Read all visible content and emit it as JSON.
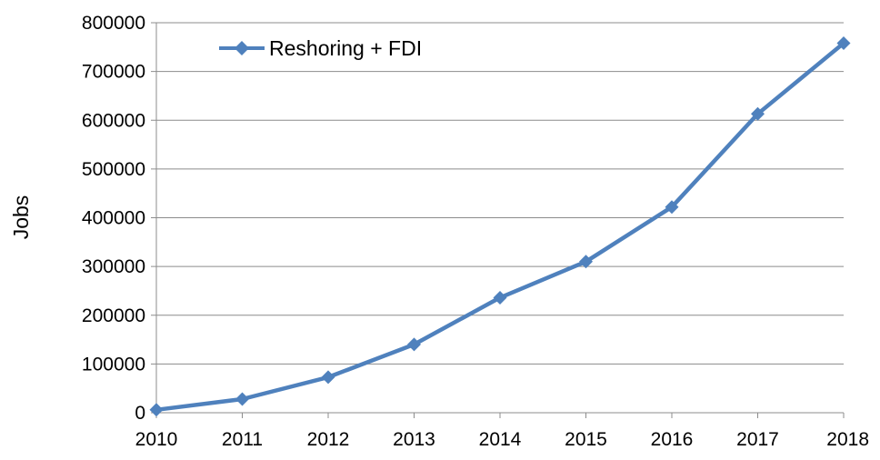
{
  "chart_data": {
    "type": "line",
    "title": "",
    "xlabel": "",
    "ylabel": "Jobs",
    "x": [
      2010,
      2011,
      2012,
      2013,
      2014,
      2015,
      2016,
      2017,
      2018
    ],
    "x_tick_labels": [
      "2010",
      "2011",
      "2012",
      "2013",
      "2014",
      "2015",
      "2016",
      "2017",
      "2018"
    ],
    "y_tick_labels": [
      "0",
      "100000",
      "200000",
      "300000",
      "400000",
      "500000",
      "600000",
      "700000",
      "800000"
    ],
    "ylim": [
      0,
      800000
    ],
    "y_ticks": [
      0,
      100000,
      200000,
      300000,
      400000,
      500000,
      600000,
      700000,
      800000
    ],
    "grid": true,
    "legend_position": "top-left",
    "series": [
      {
        "name": "Reshoring + FDI",
        "color": "#4f81bd",
        "marker": "diamond",
        "values": [
          6000,
          28000,
          73000,
          140000,
          236000,
          310000,
          422000,
          613000,
          758000
        ]
      }
    ]
  }
}
